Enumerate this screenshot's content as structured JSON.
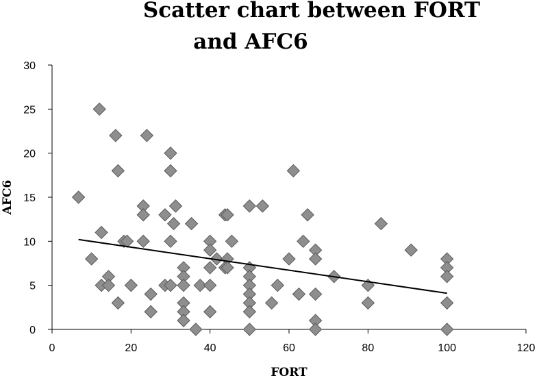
{
  "chart_data": {
    "type": "scatter",
    "title_lines": [
      "Scatter chart between FORT",
      "and AFC6"
    ],
    "xlabel": "FORT",
    "ylabel": "AFC6",
    "xlim": [
      0,
      120
    ],
    "ylim": [
      0,
      30
    ],
    "xticks": [
      0,
      20,
      40,
      60,
      80,
      100,
      120
    ],
    "yticks": [
      0,
      5,
      10,
      15,
      20,
      25,
      30
    ],
    "grid": false,
    "legend": "none",
    "marker_color": "#8e8e8e",
    "trendline": {
      "x": [
        6.7,
        100
      ],
      "y": [
        10.2,
        4.1
      ],
      "color": "#000000"
    },
    "points": [
      [
        6.7,
        15
      ],
      [
        10,
        8
      ],
      [
        12,
        25
      ],
      [
        12.5,
        11
      ],
      [
        12.5,
        5
      ],
      [
        14.3,
        6
      ],
      [
        14.3,
        5
      ],
      [
        16.1,
        22
      ],
      [
        16.7,
        18
      ],
      [
        16.7,
        3
      ],
      [
        18.2,
        10
      ],
      [
        19,
        10
      ],
      [
        20,
        5
      ],
      [
        23.1,
        14
      ],
      [
        23.1,
        13
      ],
      [
        23.1,
        10
      ],
      [
        24,
        22
      ],
      [
        25,
        4
      ],
      [
        25,
        2
      ],
      [
        28.6,
        13
      ],
      [
        28.6,
        5
      ],
      [
        30,
        20
      ],
      [
        30,
        18
      ],
      [
        30,
        10
      ],
      [
        30,
        5
      ],
      [
        30.8,
        12
      ],
      [
        31.3,
        14
      ],
      [
        33.3,
        7
      ],
      [
        33.3,
        6
      ],
      [
        33.3,
        5
      ],
      [
        33.3,
        3
      ],
      [
        33.3,
        2
      ],
      [
        33.3,
        1
      ],
      [
        35.3,
        12
      ],
      [
        36.4,
        0
      ],
      [
        37.5,
        5
      ],
      [
        40,
        10
      ],
      [
        40,
        9
      ],
      [
        40,
        7
      ],
      [
        40,
        5
      ],
      [
        40,
        2
      ],
      [
        41.7,
        8
      ],
      [
        43.8,
        13
      ],
      [
        43.8,
        7
      ],
      [
        44.4,
        13
      ],
      [
        44.4,
        8
      ],
      [
        44.4,
        7
      ],
      [
        45.5,
        10
      ],
      [
        50,
        14
      ],
      [
        50,
        7
      ],
      [
        50,
        6
      ],
      [
        50,
        5
      ],
      [
        50,
        4
      ],
      [
        50,
        3
      ],
      [
        50,
        2
      ],
      [
        50,
        0
      ],
      [
        53.3,
        14
      ],
      [
        55.6,
        3
      ],
      [
        57.1,
        5
      ],
      [
        60,
        8
      ],
      [
        61.1,
        18
      ],
      [
        62.5,
        4
      ],
      [
        63.6,
        10
      ],
      [
        64.7,
        13
      ],
      [
        66.7,
        9
      ],
      [
        66.7,
        8
      ],
      [
        66.7,
        4
      ],
      [
        66.7,
        1
      ],
      [
        66.7,
        0
      ],
      [
        71.4,
        6
      ],
      [
        80,
        5
      ],
      [
        80,
        3
      ],
      [
        83.3,
        12
      ],
      [
        90.9,
        9
      ],
      [
        100,
        8
      ],
      [
        100,
        7
      ],
      [
        100,
        6
      ],
      [
        100,
        3
      ],
      [
        100,
        0
      ]
    ]
  }
}
